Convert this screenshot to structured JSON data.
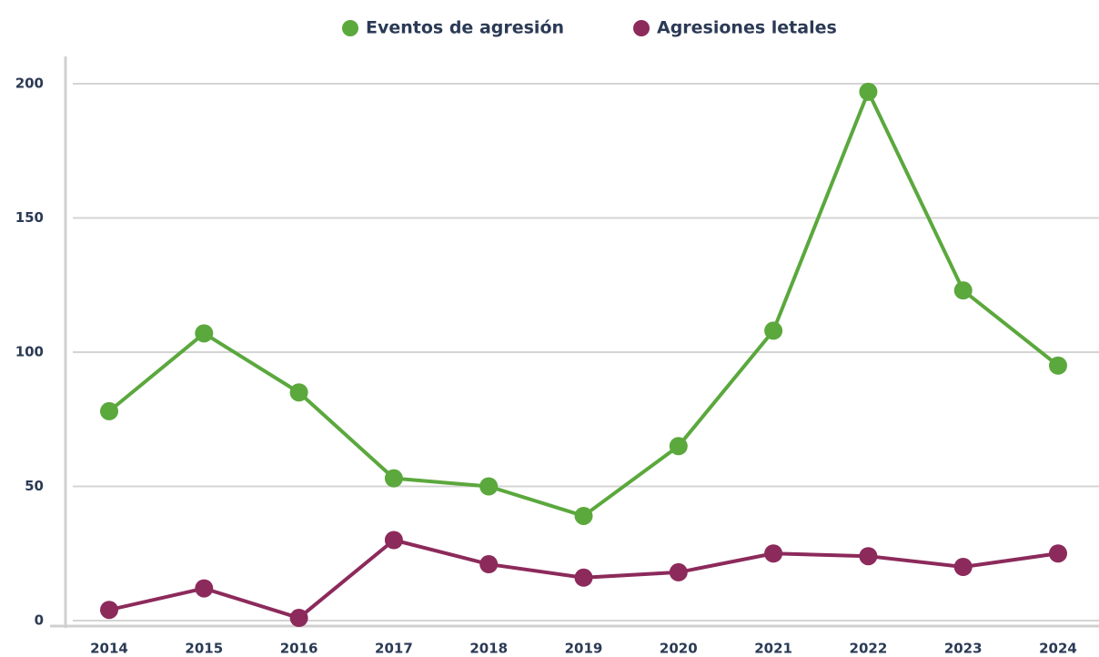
{
  "chart_data": {
    "type": "line",
    "categories": [
      "2014",
      "2015",
      "2016",
      "2017",
      "2018",
      "2019",
      "2020",
      "2021",
      "2022",
      "2023",
      "2024"
    ],
    "series": [
      {
        "name": "Eventos de agresión",
        "color": "#5ba83d",
        "values": [
          78,
          107,
          85,
          53,
          50,
          39,
          65,
          108,
          197,
          123,
          95
        ]
      },
      {
        "name": "Agresiones letales",
        "color": "#8c2a5b",
        "values": [
          4,
          12,
          1,
          30,
          21,
          16,
          18,
          25,
          24,
          20,
          25
        ]
      }
    ],
    "ylim": [
      0,
      200
    ],
    "yticks": [
      0,
      50,
      100,
      150,
      200
    ],
    "grid": true,
    "legend": "top"
  }
}
